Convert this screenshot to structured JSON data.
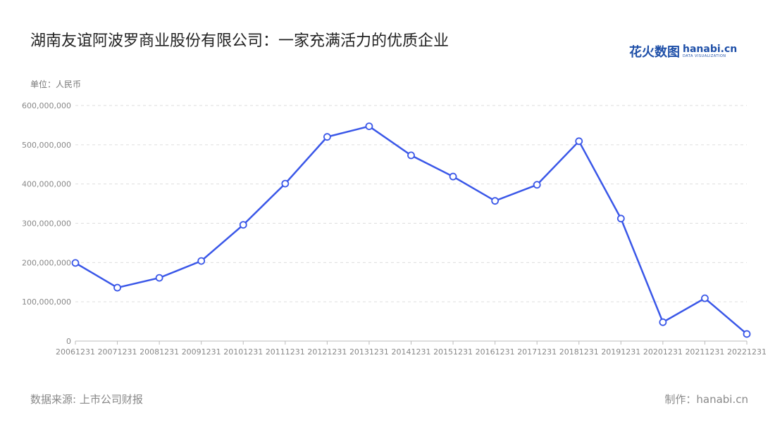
{
  "title": "湖南友谊阿波罗商业股份有限公司：一家充满活力的优质企业",
  "unit_label": "单位：人民币",
  "source": "数据来源: 上市公司财报",
  "maker": "制作：hanabi.cn",
  "logo": {
    "cn": "花火数图",
    "en": "hanabi.cn",
    "tagline": "DATA VISUALIZATION"
  },
  "colors": {
    "line": "#3a57e8",
    "grid": "#dddddd"
  },
  "chart_data": {
    "type": "line",
    "title": "湖南友谊阿波罗商业股份有限公司：一家充满活力的优质企业",
    "ylabel": "单位：人民币",
    "ylim": [
      0,
      600000000
    ],
    "yticks": [
      0,
      100000000,
      200000000,
      300000000,
      400000000,
      500000000,
      600000000
    ],
    "ytick_labels": [
      "0",
      "100,000,000",
      "200,000,000",
      "300,000,000",
      "400,000,000",
      "500,000,000",
      "600,000,000"
    ],
    "grid": true,
    "categories": [
      "20061231",
      "20071231",
      "20081231",
      "20091231",
      "20101231",
      "20111231",
      "20121231",
      "20131231",
      "20141231",
      "20151231",
      "20161231",
      "20171231",
      "20181231",
      "20191231",
      "20201231",
      "20211231",
      "20221231"
    ],
    "values": [
      199000000,
      136000000,
      161000000,
      204000000,
      296000000,
      401000000,
      520000000,
      547000000,
      473000000,
      419000000,
      357000000,
      398000000,
      509000000,
      312000000,
      48000000,
      109000000,
      18000000
    ]
  }
}
